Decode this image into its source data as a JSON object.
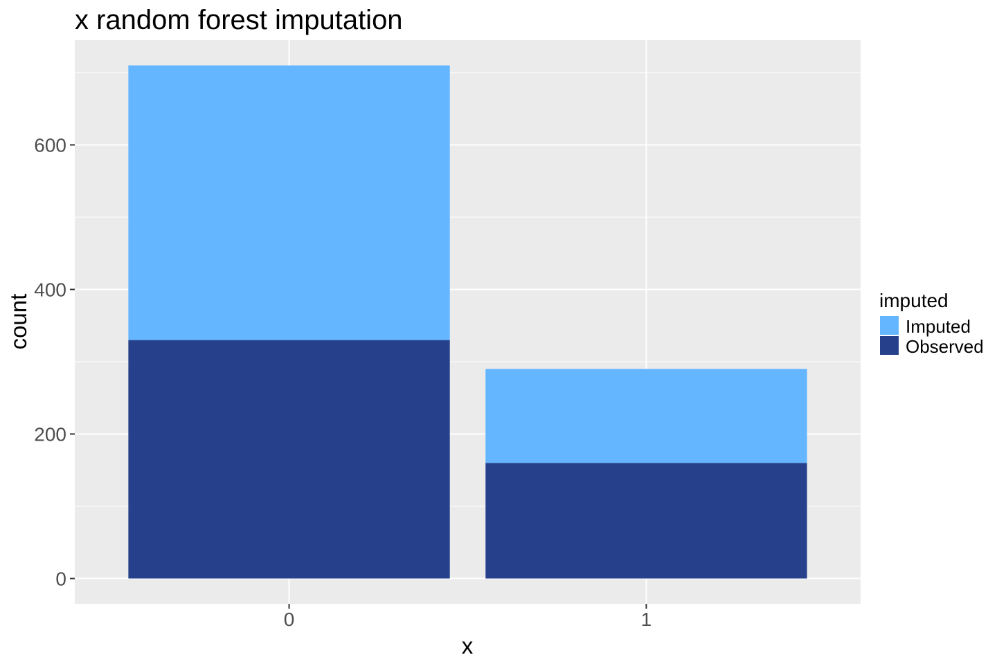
{
  "chart_data": {
    "type": "bar",
    "stacked": true,
    "title": "x random forest imputation",
    "xlabel": "x",
    "ylabel": "count",
    "categories": [
      "0",
      "1"
    ],
    "ylim": [
      -35,
      745
    ],
    "yticks": [
      0,
      200,
      400,
      600
    ],
    "ytick_labels": [
      "0",
      "200",
      "400",
      "600"
    ],
    "grid": true,
    "panel_background": "#ebebeb",
    "gridline_color": "#ffffff",
    "legend": {
      "title": "imputed",
      "position": "right"
    },
    "series": [
      {
        "name": "Observed",
        "color": "#26408b",
        "values": [
          330,
          160
        ]
      },
      {
        "name": "Imputed",
        "color": "#63b6ff",
        "values": [
          380,
          130
        ]
      }
    ],
    "legend_order": [
      "Imputed",
      "Observed"
    ]
  }
}
